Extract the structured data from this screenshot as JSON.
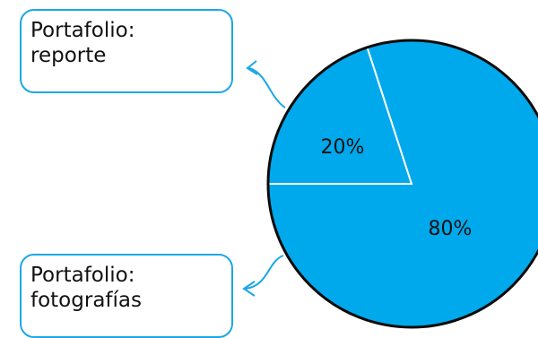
{
  "chart_data": {
    "type": "pie",
    "slices": [
      {
        "label": "Portafolio: reporte",
        "value": 20,
        "display": "20%",
        "color": "#00a9ec"
      },
      {
        "label": "Portafolio: fotografías",
        "value": 80,
        "display": "80%",
        "color": "#00a9ec"
      }
    ],
    "slice_border_color": "#ffffff"
  },
  "callouts": {
    "reporte": {
      "line1": "Portafolio:",
      "line2": "reporte"
    },
    "fotos": {
      "line1": "Portafolio:",
      "line2": "fotografías"
    }
  }
}
